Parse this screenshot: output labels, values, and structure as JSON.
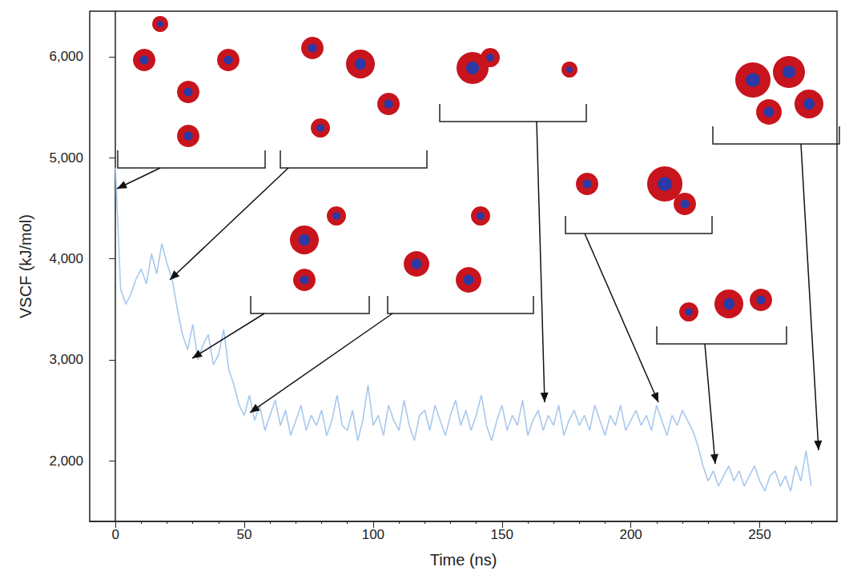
{
  "chart_data": {
    "type": "line",
    "x_label": "Time (ns)",
    "y_label": "VSCF (kJ/mol)",
    "color": "#a8c8ec",
    "x": [
      0,
      2,
      4,
      6,
      8,
      10,
      12,
      14,
      16,
      18,
      20,
      22,
      24,
      26,
      28,
      30,
      32,
      34,
      36,
      38,
      40,
      42,
      44,
      46,
      48,
      50,
      52,
      54,
      56,
      58,
      60,
      62,
      64,
      66,
      68,
      70,
      72,
      74,
      76,
      78,
      80,
      82,
      84,
      86,
      88,
      90,
      92,
      94,
      96,
      98,
      100,
      102,
      104,
      106,
      108,
      110,
      112,
      114,
      116,
      118,
      120,
      122,
      124,
      126,
      128,
      130,
      132,
      134,
      136,
      138,
      140,
      142,
      144,
      146,
      148,
      150,
      152,
      154,
      156,
      158,
      160,
      162,
      164,
      166,
      168,
      170,
      172,
      174,
      176,
      178,
      180,
      182,
      184,
      186,
      188,
      190,
      192,
      194,
      196,
      198,
      200,
      202,
      204,
      206,
      208,
      210,
      212,
      214,
      216,
      218,
      220,
      222,
      224,
      226,
      228,
      230,
      232,
      234,
      236,
      238,
      240,
      242,
      244,
      246,
      248,
      250,
      252,
      254,
      256,
      258,
      260,
      262,
      264,
      266,
      268,
      270
    ],
    "values": [
      4900,
      3700,
      3550,
      3650,
      3800,
      3900,
      3750,
      4050,
      3850,
      4150,
      3950,
      3800,
      3500,
      3250,
      3100,
      3350,
      3000,
      3150,
      3250,
      2950,
      3050,
      3300,
      2900,
      2750,
      2550,
      2450,
      2650,
      2400,
      2550,
      2300,
      2450,
      2600,
      2350,
      2500,
      2250,
      2400,
      2550,
      2300,
      2450,
      2350,
      2500,
      2250,
      2400,
      2650,
      2350,
      2300,
      2500,
      2200,
      2400,
      2750,
      2350,
      2450,
      2250,
      2550,
      2400,
      2300,
      2600,
      2350,
      2200,
      2450,
      2500,
      2300,
      2550,
      2400,
      2250,
      2450,
      2600,
      2350,
      2500,
      2300,
      2450,
      2650,
      2350,
      2200,
      2400,
      2550,
      2300,
      2450,
      2350,
      2600,
      2250,
      2400,
      2500,
      2300,
      2450,
      2350,
      2550,
      2250,
      2400,
      2500,
      2350,
      2450,
      2300,
      2550,
      2400,
      2250,
      2450,
      2350,
      2550,
      2300,
      2400,
      2500,
      2350,
      2450,
      2300,
      2550,
      2400,
      2250,
      2450,
      2350,
      2500,
      2400,
      2300,
      2150,
      1950,
      1800,
      1900,
      1750,
      1850,
      1950,
      1800,
      1900,
      1750,
      1850,
      1950,
      1800,
      1700,
      1850,
      1900,
      1750,
      1850,
      1700,
      1950,
      1800,
      2100,
      1750
    ],
    "xlim": [
      -10,
      280
    ],
    "xticks": [
      0,
      50,
      100,
      150,
      200,
      250
    ],
    "ylim": [
      1400,
      6450
    ],
    "yticks": [
      2000,
      3000,
      4000,
      5000,
      6000
    ],
    "grid": false
  }
}
